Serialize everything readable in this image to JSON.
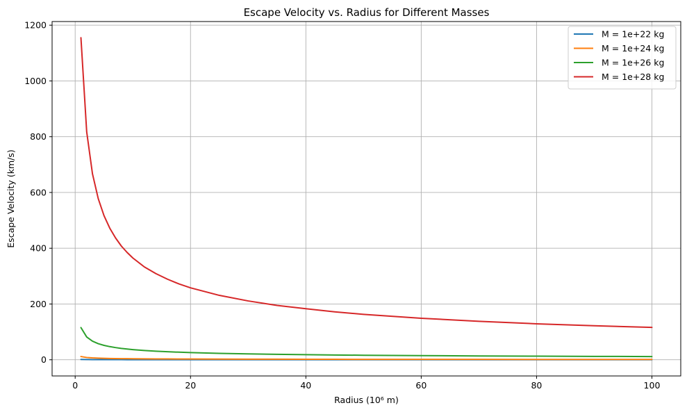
{
  "chart_data": {
    "type": "line",
    "title": "Escape Velocity vs. Radius for Different Masses",
    "xlabel": "Radius (10⁶ m)",
    "ylabel": "Escape Velocity (km/s)",
    "xlim": [
      -4,
      105
    ],
    "ylim": [
      -58,
      1213
    ],
    "xticks": [
      0,
      20,
      40,
      60,
      80,
      100
    ],
    "yticks": [
      0,
      200,
      400,
      600,
      800,
      1000,
      1200
    ],
    "grid": true,
    "legend_position": "top-right",
    "x": [
      1,
      2,
      3,
      4,
      5,
      6,
      7,
      8,
      9,
      10,
      12,
      14,
      16,
      18,
      20,
      25,
      30,
      35,
      40,
      45,
      50,
      60,
      70,
      80,
      90,
      100
    ],
    "series": [
      {
        "name": "M = 1e+22 kg",
        "color": "#1f77b4",
        "values": [
          1.16,
          0.82,
          0.67,
          0.58,
          0.52,
          0.47,
          0.44,
          0.41,
          0.39,
          0.37,
          0.33,
          0.31,
          0.29,
          0.27,
          0.26,
          0.23,
          0.21,
          0.2,
          0.18,
          0.17,
          0.16,
          0.15,
          0.14,
          0.13,
          0.12,
          0.12
        ]
      },
      {
        "name": "M = 1e+24 kg",
        "color": "#ff7f0e",
        "values": [
          11.6,
          8.2,
          6.7,
          5.8,
          5.2,
          4.7,
          4.4,
          4.1,
          3.9,
          3.7,
          3.3,
          3.1,
          2.9,
          2.7,
          2.6,
          2.3,
          2.1,
          2.0,
          1.8,
          1.7,
          1.6,
          1.5,
          1.4,
          1.3,
          1.2,
          1.2
        ]
      },
      {
        "name": "M = 1e+26 kg",
        "color": "#2ca02c",
        "values": [
          115.5,
          81.7,
          66.7,
          57.8,
          51.7,
          47.2,
          43.7,
          40.8,
          38.5,
          36.5,
          33.3,
          30.9,
          28.9,
          27.2,
          25.8,
          23.1,
          21.1,
          19.5,
          18.3,
          17.2,
          16.3,
          14.9,
          13.8,
          12.9,
          12.2,
          11.6
        ]
      },
      {
        "name": "M = 1e+28 kg",
        "color": "#d62728",
        "values": [
          1155,
          817,
          667,
          578,
          517,
          472,
          437,
          408,
          385,
          365,
          333,
          309,
          289,
          272,
          258,
          231,
          211,
          195,
          183,
          172,
          163,
          149,
          138,
          129,
          122,
          116
        ]
      }
    ]
  }
}
